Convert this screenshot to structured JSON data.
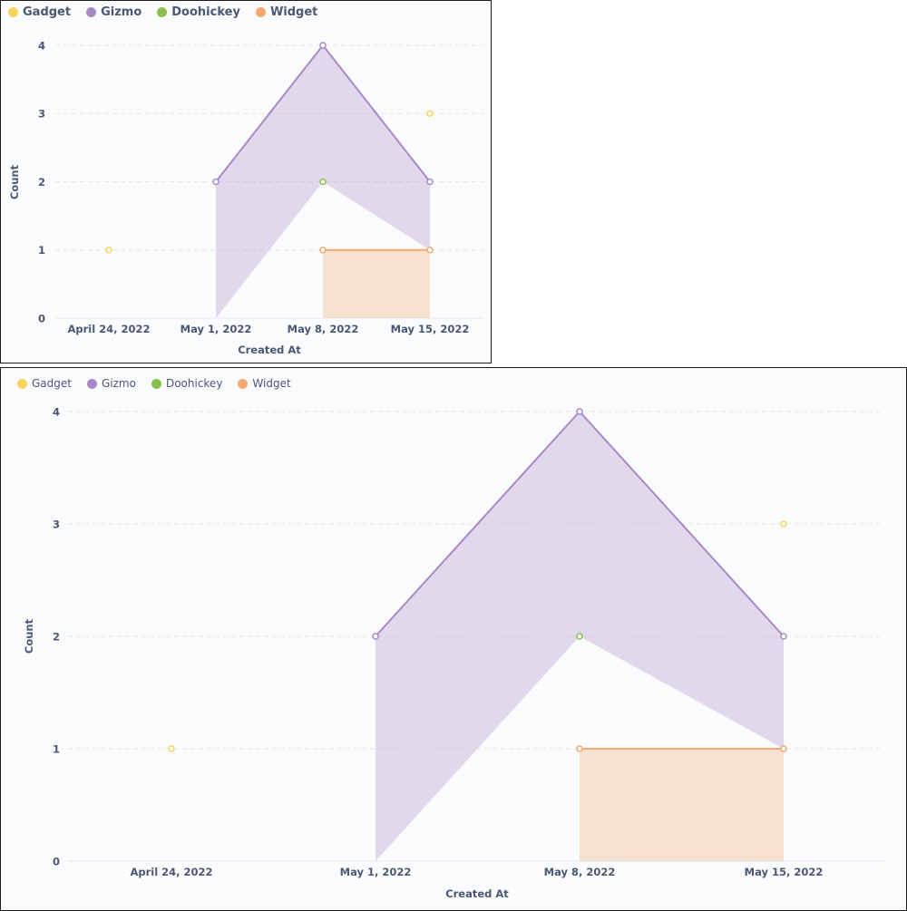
{
  "chart_data": [
    {
      "type": "area",
      "xlabel": "Created At",
      "ylabel": "Count",
      "ylim": [
        0,
        4
      ],
      "yticks": [
        0,
        1,
        2,
        3,
        4
      ],
      "categories": [
        "April 24, 2022",
        "May 1, 2022",
        "May 8, 2022",
        "May 15, 2022"
      ],
      "grid": true,
      "legend_position": "top-left",
      "series": [
        {
          "name": "Gadget",
          "color": "#f9d45c",
          "values": [
            1,
            null,
            null,
            3
          ]
        },
        {
          "name": "Gizmo",
          "color": "#a989c5",
          "values": [
            null,
            2,
            4,
            2
          ]
        },
        {
          "name": "Doohickey",
          "color": "#88bf4d",
          "values": [
            null,
            null,
            2,
            null
          ]
        },
        {
          "name": "Widget",
          "color": "#f2a86f",
          "values": [
            null,
            null,
            1,
            1
          ]
        }
      ]
    },
    {
      "type": "area",
      "xlabel": "Created At",
      "ylabel": "Count",
      "ylim": [
        0,
        4
      ],
      "yticks": [
        0,
        1,
        2,
        3,
        4
      ],
      "categories": [
        "April 24, 2022",
        "May 1, 2022",
        "May 8, 2022",
        "May 15, 2022"
      ],
      "grid": true,
      "legend_position": "top-left",
      "series": [
        {
          "name": "Gadget",
          "color": "#f9d45c",
          "values": [
            1,
            null,
            null,
            3
          ]
        },
        {
          "name": "Gizmo",
          "color": "#a989c5",
          "values": [
            null,
            2,
            4,
            2
          ]
        },
        {
          "name": "Doohickey",
          "color": "#88bf4d",
          "values": [
            null,
            null,
            2,
            null
          ]
        },
        {
          "name": "Widget",
          "color": "#f2a86f",
          "values": [
            null,
            null,
            1,
            1
          ]
        }
      ]
    }
  ]
}
